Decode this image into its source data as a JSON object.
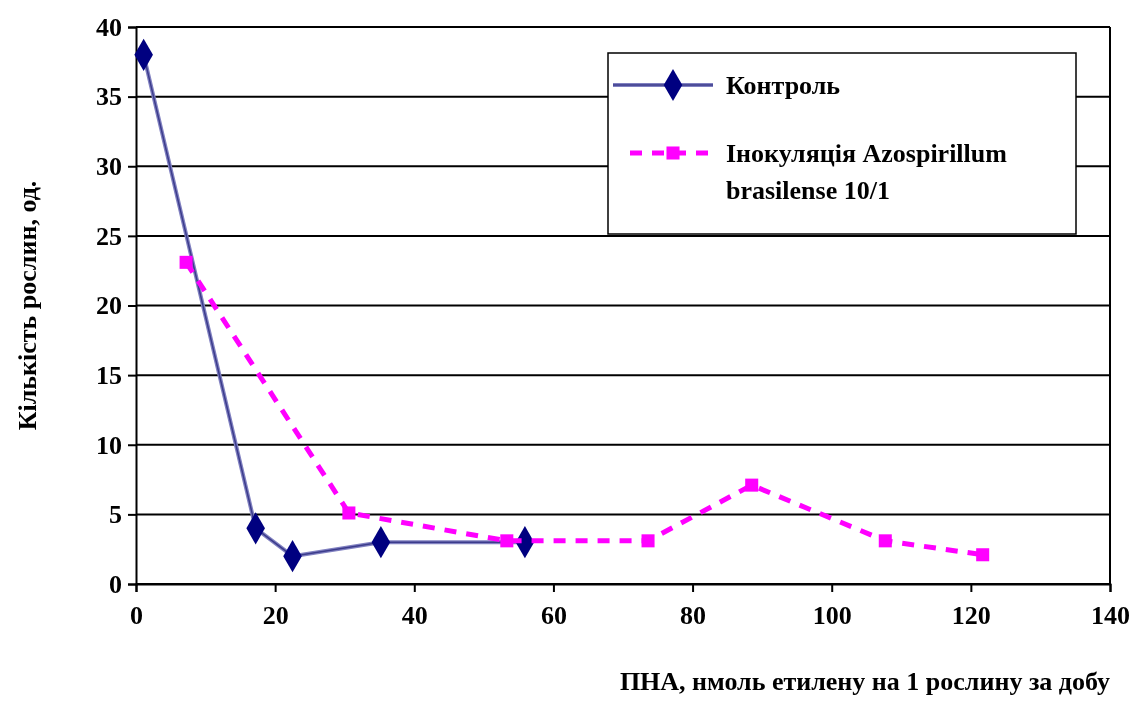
{
  "chart_data": {
    "type": "line",
    "xlabel": "ПНА, нмоль етилену на 1 рослину за добу",
    "ylabel": "Кількість рослин, од.",
    "xlim": [
      0,
      140
    ],
    "xticks": [
      0,
      20,
      40,
      60,
      80,
      100,
      120,
      140
    ],
    "ylim": [
      0,
      40
    ],
    "yticks": [
      0,
      5,
      10,
      15,
      20,
      25,
      30,
      35,
      40
    ],
    "grid": "y",
    "legend": "top right",
    "series": [
      {
        "name": "Контроль",
        "color": "#000080",
        "marker": "diamond",
        "line_style": "solid",
        "x": [
          1.1,
          17.2,
          22.5,
          35.2,
          55.9
        ],
        "values": [
          38,
          4,
          2,
          3,
          3
        ]
      },
      {
        "name": "Інокуляція Azospirillum brasilense 10/1",
        "color": "#ff00ff",
        "marker": "square",
        "line_style": "dashed",
        "x": [
          7.2,
          30.6,
          53.3,
          73.6,
          88.5,
          107.7,
          121.7
        ],
        "values": [
          23.1,
          5.1,
          3.1,
          3.1,
          7.1,
          3.1,
          2.1
        ]
      }
    ]
  }
}
